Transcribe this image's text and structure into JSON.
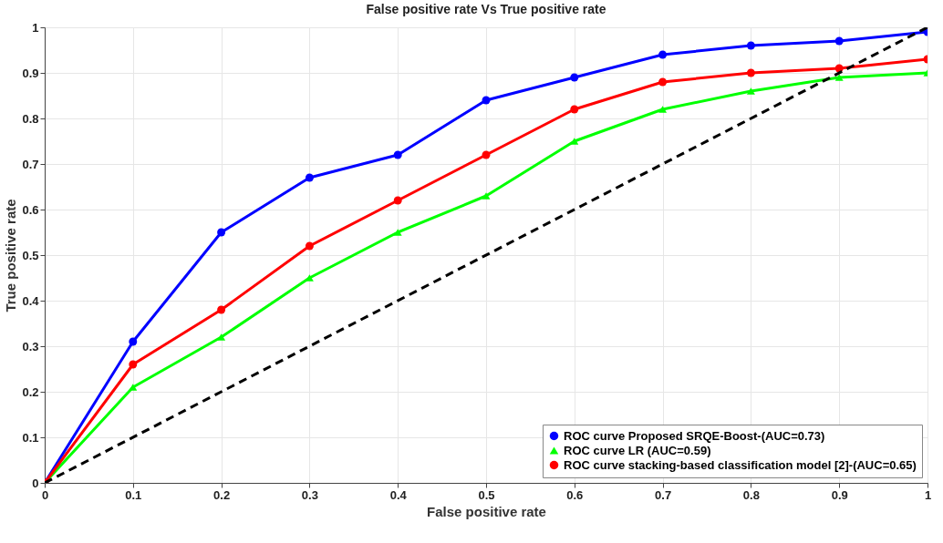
{
  "chart_data": {
    "type": "line",
    "title": "False positive rate Vs True positive rate",
    "xlabel": "False positive rate",
    "ylabel": "True positive rate",
    "x": [
      0,
      0.1,
      0.2,
      0.3,
      0.4,
      0.5,
      0.6,
      0.7,
      0.8,
      0.9,
      1
    ],
    "series": [
      {
        "name": "ROC curve Proposed SRQE-Boost-(AUC=0.73)",
        "color": "#0000ff",
        "marker": "circle",
        "values": [
          0,
          0.31,
          0.55,
          0.67,
          0.72,
          0.84,
          0.89,
          0.94,
          0.96,
          0.97,
          0.99
        ]
      },
      {
        "name": "ROC curve LR (AUC=0.59)",
        "color": "#00ff00",
        "marker": "triangle",
        "values": [
          0,
          0.21,
          0.32,
          0.45,
          0.55,
          0.63,
          0.75,
          0.82,
          0.86,
          0.89,
          0.9
        ]
      },
      {
        "name": "ROC curve stacking-based classification model [2]-(AUC=0.65)",
        "color": "#ff0000",
        "marker": "circle",
        "values": [
          0,
          0.26,
          0.38,
          0.52,
          0.62,
          0.72,
          0.82,
          0.88,
          0.9,
          0.91,
          0.93
        ]
      },
      {
        "type": "line",
        "color": "#000000",
        "line_style": "dashed",
        "marker": "none",
        "x": [
          0,
          1
        ],
        "values": [
          0,
          1
        ]
      }
    ],
    "xlim": [
      0,
      1
    ],
    "ylim": [
      0,
      1
    ],
    "xticks": [
      0,
      0.1,
      0.2,
      0.3,
      0.4,
      0.5,
      0.6,
      0.7,
      0.8,
      0.9,
      1
    ],
    "yticks": [
      0,
      0.1,
      0.2,
      0.3,
      0.4,
      0.5,
      0.6,
      0.7,
      0.8,
      0.9,
      1
    ],
    "grid": true,
    "legend": "bottom right"
  }
}
